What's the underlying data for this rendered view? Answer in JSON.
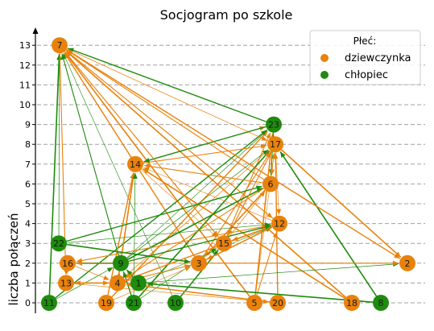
{
  "chart_data": {
    "type": "scatter",
    "title": "Socjogram po szkole",
    "xlabel": "",
    "ylabel": "liczba połączeń",
    "ylim": [
      0,
      13
    ],
    "yticks": [
      0,
      1,
      2,
      3,
      4,
      5,
      6,
      7,
      8,
      9,
      10,
      11,
      12,
      13
    ],
    "grid": "horizontal-dashed",
    "legend": {
      "title": "Płeć:",
      "placement": "top-right",
      "entries": [
        {
          "label": "dziewczynka",
          "color": "#e8820c"
        },
        {
          "label": "chłopiec",
          "color": "#1e8c0c"
        }
      ]
    },
    "nodes": [
      {
        "id": "7",
        "gender": "dziewczynka",
        "y": 13
      },
      {
        "id": "23",
        "gender": "chłopiec",
        "y": 9
      },
      {
        "id": "17",
        "gender": "dziewczynka",
        "y": 8
      },
      {
        "id": "14",
        "gender": "dziewczynka",
        "y": 7
      },
      {
        "id": "6",
        "gender": "dziewczynka",
        "y": 6
      },
      {
        "id": "12",
        "gender": "dziewczynka",
        "y": 4
      },
      {
        "id": "22",
        "gender": "chłopiec",
        "y": 3
      },
      {
        "id": "15",
        "gender": "dziewczynka",
        "y": 3
      },
      {
        "id": "16",
        "gender": "dziewczynka",
        "y": 2
      },
      {
        "id": "9",
        "gender": "chłopiec",
        "y": 2
      },
      {
        "id": "3",
        "gender": "dziewczynka",
        "y": 2
      },
      {
        "id": "2",
        "gender": "dziewczynka",
        "y": 2
      },
      {
        "id": "13",
        "gender": "dziewczynka",
        "y": 1
      },
      {
        "id": "4",
        "gender": "dziewczynka",
        "y": 1
      },
      {
        "id": "1",
        "gender": "chłopiec",
        "y": 1
      },
      {
        "id": "11",
        "gender": "chłopiec",
        "y": 0
      },
      {
        "id": "19",
        "gender": "dziewczynka",
        "y": 0
      },
      {
        "id": "21",
        "gender": "chłopiec",
        "y": 0
      },
      {
        "id": "10",
        "gender": "chłopiec",
        "y": 0
      },
      {
        "id": "5",
        "gender": "dziewczynka",
        "y": 0
      },
      {
        "id": "20",
        "gender": "dziewczynka",
        "y": 0
      },
      {
        "id": "18",
        "gender": "dziewczynka",
        "y": 0
      },
      {
        "id": "8",
        "gender": "chłopiec",
        "y": 0
      }
    ],
    "edges": [
      [
        "11",
        "7"
      ],
      [
        "22",
        "7"
      ],
      [
        "9",
        "7"
      ],
      [
        "10",
        "7"
      ],
      [
        "3",
        "7"
      ],
      [
        "5",
        "7"
      ],
      [
        "2",
        "7"
      ],
      [
        "12",
        "7"
      ],
      [
        "17",
        "7"
      ],
      [
        "23",
        "7"
      ],
      [
        "18",
        "7"
      ],
      [
        "15",
        "7"
      ],
      [
        "6",
        "7"
      ],
      [
        "9",
        "23"
      ],
      [
        "19",
        "23"
      ],
      [
        "5",
        "23"
      ],
      [
        "14",
        "23"
      ],
      [
        "15",
        "23"
      ],
      [
        "6",
        "23"
      ],
      [
        "11",
        "23"
      ],
      [
        "21",
        "17"
      ],
      [
        "4",
        "17"
      ],
      [
        "3",
        "17"
      ],
      [
        "5",
        "17"
      ],
      [
        "20",
        "17"
      ],
      [
        "8",
        "17"
      ],
      [
        "9",
        "17"
      ],
      [
        "14",
        "17"
      ],
      [
        "7",
        "17"
      ],
      [
        "19",
        "14"
      ],
      [
        "4",
        "14"
      ],
      [
        "21",
        "14"
      ],
      [
        "6",
        "14"
      ],
      [
        "12",
        "14"
      ],
      [
        "23",
        "14"
      ],
      [
        "18",
        "14"
      ],
      [
        "15",
        "6"
      ],
      [
        "23",
        "6"
      ],
      [
        "17",
        "6"
      ],
      [
        "22",
        "6"
      ],
      [
        "9",
        "6"
      ],
      [
        "7",
        "12"
      ],
      [
        "5",
        "12"
      ],
      [
        "17",
        "12"
      ],
      [
        "3",
        "12"
      ],
      [
        "10",
        "15"
      ],
      [
        "21",
        "15"
      ],
      [
        "17",
        "15"
      ],
      [
        "14",
        "15"
      ],
      [
        "12",
        "15"
      ],
      [
        "9",
        "16"
      ],
      [
        "3",
        "16"
      ],
      [
        "12",
        "16"
      ],
      [
        "4",
        "9"
      ],
      [
        "21",
        "9"
      ],
      [
        "1",
        "9"
      ],
      [
        "11",
        "9"
      ],
      [
        "4",
        "3"
      ],
      [
        "19",
        "3"
      ],
      [
        "12",
        "3"
      ],
      [
        "6",
        "3"
      ],
      [
        "1",
        "2"
      ],
      [
        "3",
        "2"
      ],
      [
        "16",
        "2"
      ],
      [
        "7",
        "2"
      ],
      [
        "17",
        "2"
      ],
      [
        "16",
        "13"
      ],
      [
        "7",
        "13"
      ],
      [
        "4",
        "13"
      ],
      [
        "20",
        "4"
      ],
      [
        "13",
        "4"
      ],
      [
        "16",
        "4"
      ],
      [
        "6",
        "4"
      ],
      [
        "1",
        "12"
      ],
      [
        "4",
        "12"
      ],
      [
        "8",
        "1"
      ],
      [
        "13",
        "20"
      ],
      [
        "7",
        "15"
      ],
      [
        "22",
        "12"
      ],
      [
        "9",
        "12"
      ],
      [
        "22",
        "3"
      ]
    ]
  }
}
